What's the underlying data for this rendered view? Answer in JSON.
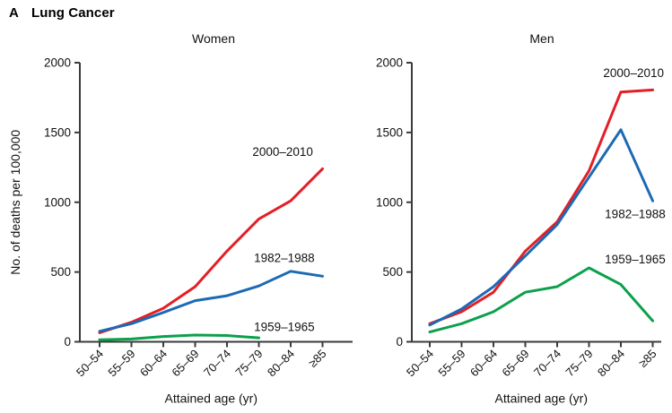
{
  "figure": {
    "panel_letter": "A",
    "title": "Lung Cancer"
  },
  "chart_data": [
    {
      "type": "line",
      "title": "Women",
      "xlabel": "Attained age (yr)",
      "ylabel": "No. of deaths per 100,000",
      "ylim": [
        0,
        2000
      ],
      "yticks": [
        0,
        500,
        1000,
        1500,
        2000
      ],
      "grid": false,
      "legend_position": "inline-labels",
      "categories": [
        "50–54",
        "55–59",
        "60–64",
        "65–69",
        "70–74",
        "75–79",
        "80–84",
        "≥85"
      ],
      "series": [
        {
          "name": "2000–2010",
          "color": "#e31f26",
          "values": [
            65,
            140,
            240,
            395,
            650,
            880,
            1010,
            1240
          ],
          "label_at": {
            "x": 5.75,
            "y": 1360
          }
        },
        {
          "name": "1982–1988",
          "color": "#1c69b4",
          "values": [
            75,
            130,
            210,
            295,
            330,
            400,
            505,
            470
          ],
          "label_at": {
            "x": 5.8,
            "y": 600
          }
        },
        {
          "name": "1959–1965",
          "color": "#0ca04c",
          "values": [
            15,
            20,
            38,
            48,
            45,
            28
          ],
          "label_at": {
            "x": 5.8,
            "y": 105
          }
        }
      ]
    },
    {
      "type": "line",
      "title": "Men",
      "xlabel": "Attained age (yr)",
      "ylabel": "",
      "ylim": [
        0,
        2000
      ],
      "yticks": [
        0,
        500,
        1000,
        1500,
        2000
      ],
      "grid": false,
      "legend_position": "inline-labels",
      "categories": [
        "50–54",
        "55–59",
        "60–64",
        "65–69",
        "70–74",
        "75–79",
        "80–84",
        "≥85"
      ],
      "series": [
        {
          "name": "2000–2010",
          "color": "#e31f26",
          "values": [
            130,
            215,
            355,
            650,
            860,
            1225,
            1790,
            1805
          ],
          "label_at": {
            "x": 6.4,
            "y": 1925
          }
        },
        {
          "name": "1982–1988",
          "color": "#1c69b4",
          "values": [
            120,
            235,
            395,
            615,
            840,
            1180,
            1520,
            1010
          ],
          "label_at": {
            "x": 6.45,
            "y": 915
          }
        },
        {
          "name": "1959–1965",
          "color": "#0ca04c",
          "values": [
            70,
            130,
            215,
            355,
            395,
            530,
            410,
            150
          ],
          "label_at": {
            "x": 6.45,
            "y": 590
          }
        }
      ]
    }
  ]
}
